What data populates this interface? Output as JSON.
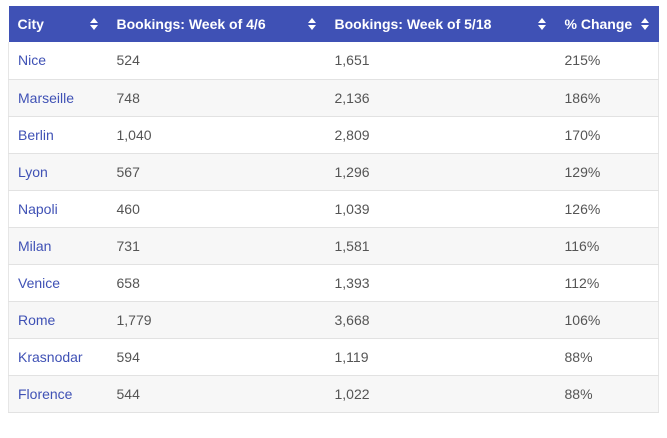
{
  "table": {
    "columns": [
      {
        "label": "City"
      },
      {
        "label": "Bookings: Week of 4/6"
      },
      {
        "label": "Bookings: Week of 5/18"
      },
      {
        "label": "% Change"
      }
    ],
    "rows": [
      {
        "city": "Nice",
        "week1": "524",
        "week2": "1,651",
        "change": "215%"
      },
      {
        "city": "Marseille",
        "week1": "748",
        "week2": "2,136",
        "change": "186%"
      },
      {
        "city": "Berlin",
        "week1": "1,040",
        "week2": "2,809",
        "change": "170%"
      },
      {
        "city": "Lyon",
        "week1": "567",
        "week2": "1,296",
        "change": "129%"
      },
      {
        "city": "Napoli",
        "week1": "460",
        "week2": "1,039",
        "change": "126%"
      },
      {
        "city": "Milan",
        "week1": "731",
        "week2": "1,581",
        "change": "116%"
      },
      {
        "city": "Venice",
        "week1": "658",
        "week2": "1,393",
        "change": "112%"
      },
      {
        "city": "Rome",
        "week1": "1,779",
        "week2": "3,668",
        "change": "106%"
      },
      {
        "city": "Krasnodar",
        "week1": "594",
        "week2": "1,119",
        "change": "88%"
      },
      {
        "city": "Florence",
        "week1": "544",
        "week2": "1,022",
        "change": "88%"
      }
    ]
  },
  "icons": {
    "sort": "sort-updown-icon"
  },
  "colors": {
    "header_bg": "#3f51b5",
    "link_text": "#3f51b5",
    "stripe": "#f7f7f7"
  }
}
